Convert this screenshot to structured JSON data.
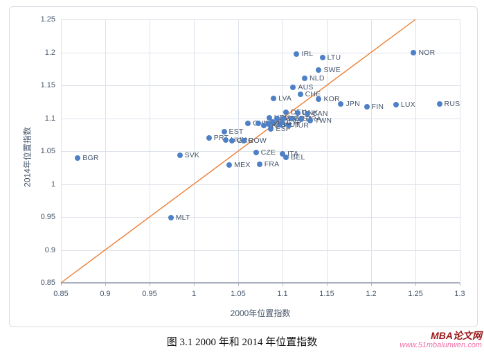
{
  "caption": "图 3.1 2000 年和 2014 年位置指数",
  "watermark": {
    "brand": "MBA论文网",
    "url": "www.51mbalunwen.com",
    "brand_color": "#9C1A1A",
    "url_color": "#F06FA8"
  },
  "chart_data": {
    "type": "scatter",
    "title": "",
    "xlabel": "2000年位置指数",
    "ylabel": "2014年位置指数",
    "xlim": [
      0.85,
      1.3
    ],
    "ylim": [
      0.85,
      1.25
    ],
    "grid": true,
    "x_ticks": [
      {
        "v": 0.85,
        "label": "0.85"
      },
      {
        "v": 0.9,
        "label": "0.9"
      },
      {
        "v": 0.95,
        "label": "0.95"
      },
      {
        "v": 1.0,
        "label": "1"
      },
      {
        "v": 1.05,
        "label": "1.05"
      },
      {
        "v": 1.1,
        "label": "1.1"
      },
      {
        "v": 1.15,
        "label": "1.15"
      },
      {
        "v": 1.2,
        "label": "1.2"
      },
      {
        "v": 1.25,
        "label": "1.25"
      },
      {
        "v": 1.3,
        "label": "1.3"
      }
    ],
    "y_ticks": [
      {
        "v": 0.85,
        "label": "0.85"
      },
      {
        "v": 0.9,
        "label": "0.9"
      },
      {
        "v": 0.95,
        "label": "0.95"
      },
      {
        "v": 1.0,
        "label": "1"
      },
      {
        "v": 1.05,
        "label": "1.05"
      },
      {
        "v": 1.1,
        "label": "1.1"
      },
      {
        "v": 1.15,
        "label": "1.15"
      },
      {
        "v": 1.2,
        "label": "1.2"
      },
      {
        "v": 1.25,
        "label": "1.25"
      }
    ],
    "point_color": "#4D80C6",
    "label_color": "#44546A",
    "grid_color": "#DDE1E9",
    "reference_line": {
      "type": "y=x",
      "from": [
        0.85,
        0.85
      ],
      "to": [
        1.25,
        1.25
      ],
      "color": "#ED7D31"
    },
    "points": [
      {
        "label": "BGR",
        "x": 0.869,
        "y": 1.04
      },
      {
        "label": "SVK",
        "x": 0.984,
        "y": 1.044
      },
      {
        "label": "MLT",
        "x": 0.974,
        "y": 0.949
      },
      {
        "label": "MEX",
        "x": 1.04,
        "y": 1.029
      },
      {
        "label": "FRA",
        "x": 1.074,
        "y": 1.03
      },
      {
        "label": "CZE",
        "x": 1.07,
        "y": 1.048
      },
      {
        "label": "ITA",
        "x": 1.1,
        "y": 1.046
      },
      {
        "label": "BEL",
        "x": 1.104,
        "y": 1.041
      },
      {
        "label": "PRT",
        "x": 1.017,
        "y": 1.07
      },
      {
        "label": "HUN",
        "x": 1.036,
        "y": 1.067
      },
      {
        "label": "GRC",
        "x": 1.043,
        "y": 1.066
      },
      {
        "label": "ROW",
        "x": 1.056,
        "y": 1.066
      },
      {
        "label": "EST",
        "x": 1.034,
        "y": 1.079
      },
      {
        "label": "ESP",
        "x": 1.087,
        "y": 1.084
      },
      {
        "label": "CHN",
        "x": 1.061,
        "y": 1.092
      },
      {
        "label": "IND",
        "x": 1.073,
        "y": 1.092
      },
      {
        "label": "ROU",
        "x": 1.079,
        "y": 1.089
      },
      {
        "label": "IDN",
        "x": 1.084,
        "y": 1.091
      },
      {
        "label": "AUT",
        "x": 1.097,
        "y": 1.09
      },
      {
        "label": "TUR",
        "x": 1.107,
        "y": 1.089
      },
      {
        "label": "POL",
        "x": 1.089,
        "y": 1.094
      },
      {
        "label": "CYP",
        "x": 1.099,
        "y": 1.093
      },
      {
        "label": "HRV",
        "x": 1.085,
        "y": 1.101
      },
      {
        "label": "SVN",
        "x": 1.094,
        "y": 1.099
      },
      {
        "label": "GBR",
        "x": 1.101,
        "y": 1.1
      },
      {
        "label": "USA",
        "x": 1.111,
        "y": 1.099
      },
      {
        "label": "BRA",
        "x": 1.121,
        "y": 1.098
      },
      {
        "label": "TWN",
        "x": 1.131,
        "y": 1.096
      },
      {
        "label": "DEU",
        "x": 1.104,
        "y": 1.109
      },
      {
        "label": "DNK",
        "x": 1.117,
        "y": 1.108
      },
      {
        "label": "CAN",
        "x": 1.128,
        "y": 1.107
      },
      {
        "label": "LVA",
        "x": 1.09,
        "y": 1.13
      },
      {
        "label": "CHE",
        "x": 1.12,
        "y": 1.136
      },
      {
        "label": "KOR",
        "x": 1.141,
        "y": 1.129
      },
      {
        "label": "AUS",
        "x": 1.112,
        "y": 1.147
      },
      {
        "label": "NLD",
        "x": 1.125,
        "y": 1.161
      },
      {
        "label": "SWE",
        "x": 1.141,
        "y": 1.173
      },
      {
        "label": "IRL",
        "x": 1.116,
        "y": 1.197
      },
      {
        "label": "LTU",
        "x": 1.145,
        "y": 1.192
      },
      {
        "label": "NOR",
        "x": 1.248,
        "y": 1.199
      },
      {
        "label": "JPN",
        "x": 1.166,
        "y": 1.122
      },
      {
        "label": "FIN",
        "x": 1.195,
        "y": 1.117
      },
      {
        "label": "LUX",
        "x": 1.228,
        "y": 1.121
      },
      {
        "label": "RUS",
        "x": 1.277,
        "y": 1.122
      }
    ]
  }
}
